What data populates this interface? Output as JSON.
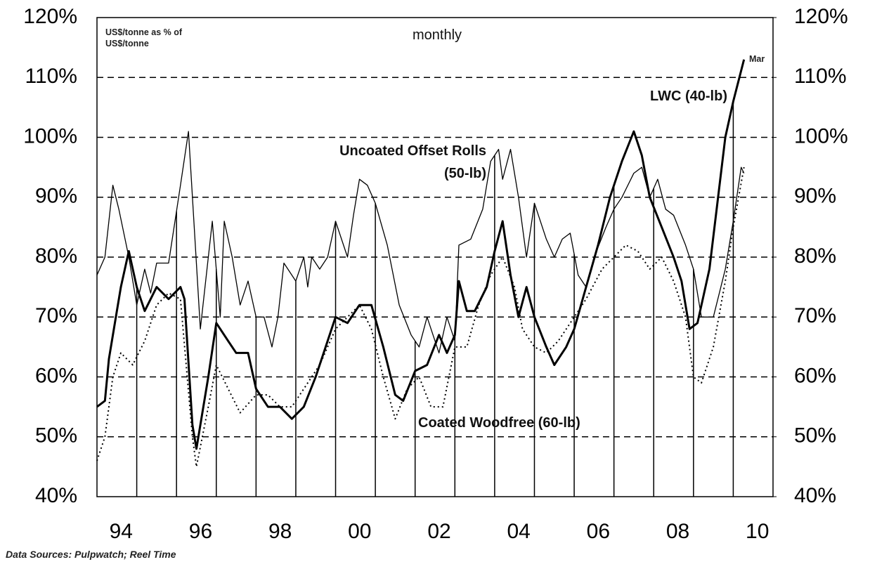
{
  "chart_data": {
    "type": "line",
    "annotations": [
      "US$/tonne as % of US$/tonne",
      "monthly",
      "Mar"
    ],
    "source": "Data Sources: Pulpwatch; Reel Time",
    "xlim": [
      1994,
      2011
    ],
    "xticks": [
      {
        "value": 1994.5,
        "label": "94"
      },
      {
        "value": 1996.5,
        "label": "96"
      },
      {
        "value": 1998.5,
        "label": "98"
      },
      {
        "value": 2000.5,
        "label": "00"
      },
      {
        "value": 2002.5,
        "label": "02"
      },
      {
        "value": 2004.5,
        "label": "04"
      },
      {
        "value": 2006.5,
        "label": "06"
      },
      {
        "value": 2008.5,
        "label": "08"
      },
      {
        "value": 2010.5,
        "label": "10"
      }
    ],
    "minor_xticks": [
      1995,
      1996,
      1997,
      1998,
      1999,
      2000,
      2001,
      2002,
      2003,
      2004,
      2005,
      2006,
      2007,
      2008,
      2009,
      2010
    ],
    "ylim": [
      40,
      120
    ],
    "yticks": [
      {
        "value": 40,
        "label": "40%"
      },
      {
        "value": 50,
        "label": "50%"
      },
      {
        "value": 60,
        "label": "60%"
      },
      {
        "value": 70,
        "label": "70%"
      },
      {
        "value": 80,
        "label": "80%"
      },
      {
        "value": 90,
        "label": "90%"
      },
      {
        "value": 100,
        "label": "100%"
      },
      {
        "value": 110,
        "label": "110%"
      },
      {
        "value": 120,
        "label": "120%"
      }
    ],
    "y2lim": [
      40,
      120
    ],
    "y2ticks": [
      {
        "value": 40,
        "label": "40%"
      },
      {
        "value": 50,
        "label": "50%"
      },
      {
        "value": 60,
        "label": "60%"
      },
      {
        "value": 70,
        "label": "70%"
      },
      {
        "value": 80,
        "label": "80%"
      },
      {
        "value": 90,
        "label": "90%"
      },
      {
        "value": 100,
        "label": "100%"
      },
      {
        "value": 110,
        "label": "110%"
      },
      {
        "value": 120,
        "label": "120%"
      }
    ],
    "grid": true,
    "series": [
      {
        "name": "Uncoated Offset Rolls (50-lb)",
        "color": "#000000",
        "linestyle": "solid",
        "linewidth": 1.3,
        "x": [
          1994.0,
          1994.2,
          1994.4,
          1994.55,
          1994.8,
          1995.0,
          1995.2,
          1995.35,
          1995.5,
          1995.8,
          1996.1,
          1996.3,
          1996.6,
          1996.9,
          1997.1,
          1997.2,
          1997.4,
          1997.6,
          1997.8,
          1998.0,
          1998.2,
          1998.4,
          1998.55,
          1998.7,
          1999.0,
          1999.2,
          1999.3,
          1999.4,
          1999.6,
          1999.8,
          2000.0,
          2000.3,
          2000.45,
          2000.6,
          2000.8,
          2001.0,
          2001.3,
          2001.6,
          2001.9,
          2002.1,
          2002.3,
          2002.6,
          2002.8,
          2003.0,
          2003.1,
          2003.4,
          2003.7,
          2003.9,
          2004.1,
          2004.2,
          2004.4,
          2004.6,
          2004.8,
          2005.0,
          2005.3,
          2005.5,
          2005.7,
          2005.9,
          2006.1,
          2006.3,
          2006.5,
          2006.8,
          2007.0,
          2007.2,
          2007.5,
          2007.7,
          2007.9,
          2008.1,
          2008.3,
          2008.5,
          2008.8,
          2009.0,
          2009.2,
          2009.5,
          2009.8,
          2010.0,
          2010.2,
          2010.27
        ],
        "values": [
          77,
          80,
          92,
          88,
          80,
          72,
          78,
          74,
          79,
          79,
          92,
          101,
          68,
          86,
          70,
          86,
          80,
          72,
          76,
          70,
          70,
          65,
          70,
          79,
          76,
          80,
          75,
          80,
          78,
          80,
          86,
          80,
          87,
          93,
          92,
          89,
          82,
          72,
          67,
          65,
          70,
          64,
          70,
          66,
          82,
          83,
          88,
          96,
          98,
          93,
          98,
          90,
          80,
          89,
          83,
          80,
          83,
          84,
          77,
          75,
          80,
          85,
          88,
          90,
          94,
          95,
          90,
          93,
          88,
          87,
          82,
          78,
          70,
          70,
          78,
          86,
          95,
          94
        ]
      },
      {
        "name": "LWC (40-lb)",
        "color": "#000000",
        "linestyle": "solid",
        "linewidth": 3,
        "x": [
          1994.0,
          1994.2,
          1994.3,
          1994.5,
          1994.6,
          1994.8,
          1995.0,
          1995.2,
          1995.5,
          1995.8,
          1996.1,
          1996.2,
          1996.4,
          1996.5,
          1996.8,
          1997.0,
          1997.3,
          1997.5,
          1997.8,
          1998.0,
          1998.3,
          1998.6,
          1998.9,
          1999.2,
          1999.5,
          1999.8,
          2000.0,
          2000.3,
          2000.6,
          2000.9,
          2001.2,
          2001.5,
          2001.7,
          2002.0,
          2002.3,
          2002.6,
          2002.8,
          2003.0,
          2003.1,
          2003.3,
          2003.5,
          2003.8,
          2004.0,
          2004.2,
          2004.4,
          2004.6,
          2004.8,
          2005.0,
          2005.3,
          2005.5,
          2005.8,
          2006.0,
          2006.3,
          2006.6,
          2006.9,
          2007.2,
          2007.5,
          2007.7,
          2007.9,
          2008.2,
          2008.5,
          2008.7,
          2008.9,
          2009.1,
          2009.4,
          2009.6,
          2009.8,
          2010.0,
          2010.27
        ],
        "values": [
          55,
          56,
          63,
          71,
          75,
          81,
          75,
          71,
          75,
          73,
          75,
          73,
          52,
          48,
          60,
          69,
          66,
          64,
          64,
          58,
          55,
          55,
          53,
          55,
          60,
          66,
          70,
          69,
          72,
          72,
          65,
          57,
          56,
          61,
          62,
          67,
          64,
          67,
          76,
          71,
          71,
          75,
          81,
          86,
          77,
          70,
          75,
          70,
          65,
          62,
          65,
          68,
          75,
          82,
          90,
          96,
          101,
          97,
          90,
          85,
          80,
          76,
          68,
          69,
          78,
          89,
          100,
          106,
          113
        ]
      },
      {
        "name": "Coated Woodfree (60-lb)",
        "color": "#000000",
        "linestyle": "dotted",
        "linewidth": 2,
        "x": [
          1994.0,
          1994.2,
          1994.4,
          1994.6,
          1994.9,
          1995.2,
          1995.5,
          1995.8,
          1996.1,
          1996.4,
          1996.5,
          1996.8,
          1997.0,
          1997.3,
          1997.6,
          1998.0,
          1998.3,
          1998.6,
          1998.9,
          1999.2,
          1999.6,
          2000.0,
          2000.3,
          2000.6,
          2000.9,
          2001.2,
          2001.5,
          2001.8,
          2002.1,
          2002.4,
          2002.7,
          2003.0,
          2003.3,
          2003.6,
          2003.9,
          2004.2,
          2004.5,
          2004.7,
          2005.0,
          2005.3,
          2005.6,
          2006.0,
          2006.3,
          2006.7,
          2007.0,
          2007.3,
          2007.6,
          2007.9,
          2008.2,
          2008.5,
          2008.8,
          2009.0,
          2009.2,
          2009.5,
          2009.8,
          2010.0,
          2010.27
        ],
        "values": [
          46,
          50,
          60,
          64,
          62,
          66,
          72,
          74,
          73,
          50,
          45,
          55,
          62,
          58,
          54,
          57,
          57,
          55,
          55,
          58,
          62,
          68,
          70,
          72,
          68,
          60,
          53,
          58,
          60,
          55,
          55,
          65,
          65,
          72,
          77,
          80,
          75,
          68,
          65,
          64,
          66,
          70,
          73,
          78,
          80,
          82,
          81,
          78,
          80,
          76,
          70,
          60,
          59,
          65,
          76,
          85,
          95
        ]
      }
    ]
  }
}
